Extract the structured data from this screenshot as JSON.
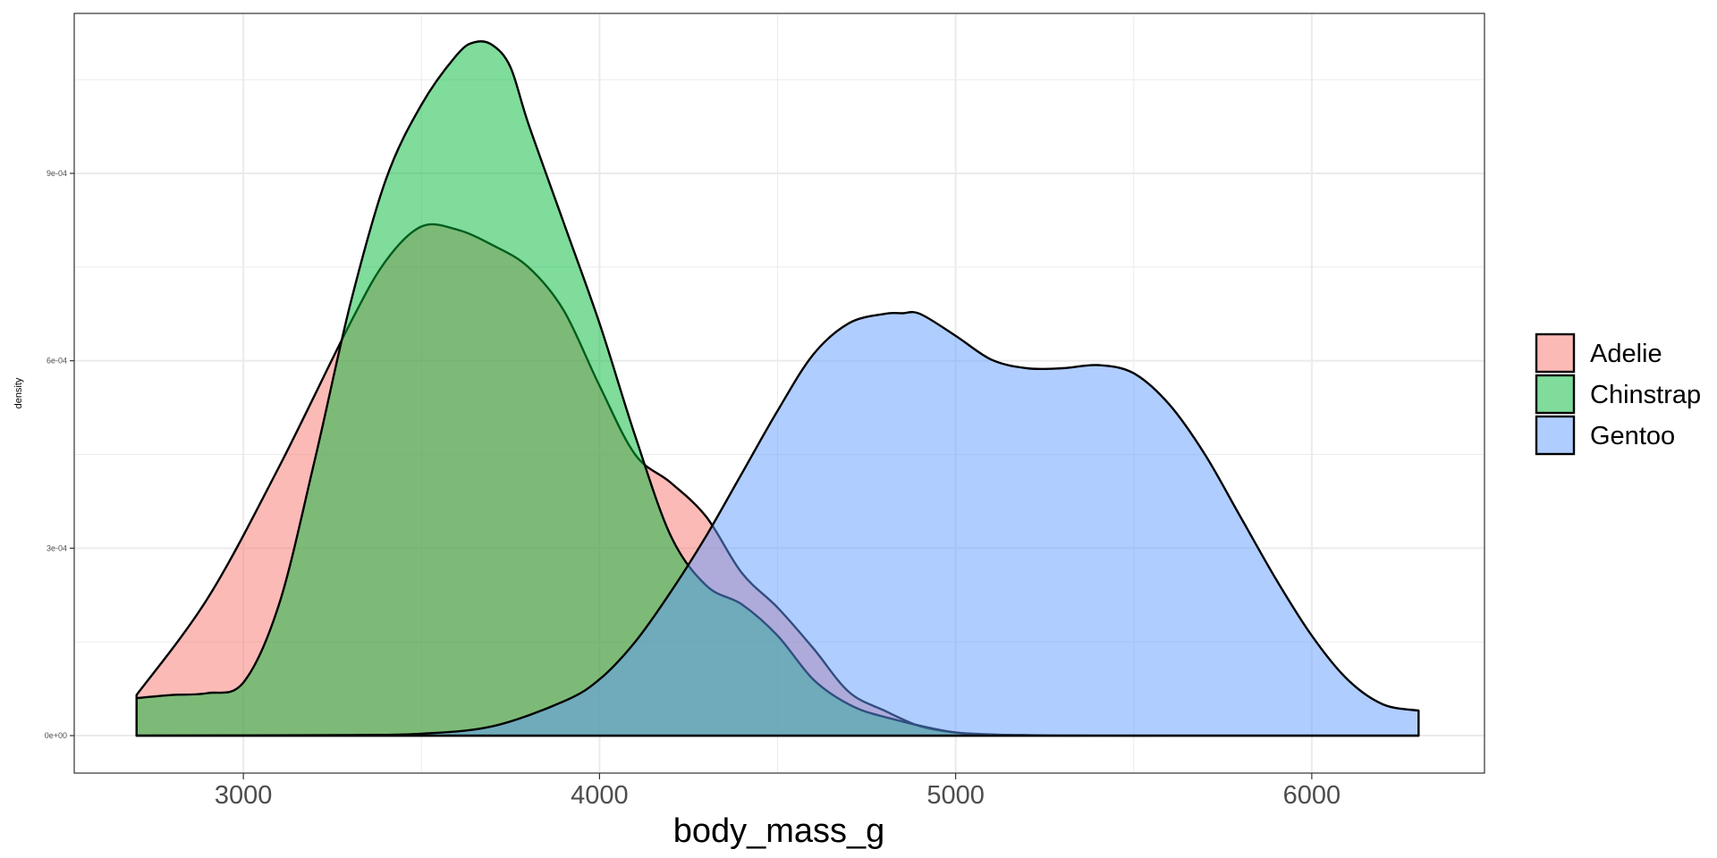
{
  "chart_data": {
    "type": "area",
    "subtype": "density",
    "xlabel": "body_mass_g",
    "ylabel": "density",
    "xlim": [
      2525,
      6485
    ],
    "ylim": [
      -6e-05,
      0.001156
    ],
    "x_ticks": [
      3000,
      4000,
      5000,
      6000
    ],
    "x_tick_labels": [
      "3000",
      "4000",
      "5000",
      "6000"
    ],
    "y_ticks": [
      0,
      0.0003,
      0.0006,
      0.0009
    ],
    "y_tick_labels": [
      "0e+00",
      "3e-04",
      "6e-04",
      "9e-04"
    ],
    "grid": true,
    "legend_position": "right",
    "series": [
      {
        "name": "Adelie",
        "color": "#F8766D",
        "x": [
          2700,
          2900,
          3100,
          3300,
          3400,
          3500,
          3600,
          3700,
          3800,
          3900,
          4000,
          4100,
          4200,
          4300,
          4400,
          4500,
          4600,
          4700,
          4800,
          4900,
          5000,
          5100,
          5200,
          5400,
          5600,
          5800,
          6000,
          6300
        ],
        "y": [
          6.5e-05,
          0.00022,
          0.00043,
          0.00066,
          0.00076,
          0.000815,
          0.00081,
          0.000785,
          0.00075,
          0.00068,
          0.00056,
          0.00045,
          0.000405,
          0.00035,
          0.00026,
          0.000205,
          0.00014,
          7e-05,
          4e-05,
          1.5e-05,
          5e-06,
          2e-06,
          0,
          0,
          0,
          0,
          0,
          0
        ]
      },
      {
        "name": "Chinstrap",
        "color": "#00BA38",
        "x": [
          2700,
          2800,
          2900,
          3000,
          3100,
          3200,
          3300,
          3400,
          3500,
          3600,
          3650,
          3700,
          3750,
          3800,
          3900,
          4000,
          4100,
          4200,
          4300,
          4400,
          4500,
          4600,
          4700,
          4800,
          5000,
          5200,
          5400,
          5600,
          5800,
          6000,
          6300
        ],
        "y": [
          6e-05,
          6.5e-05,
          6.8e-05,
          8.5e-05,
          0.00021,
          0.00044,
          0.00069,
          0.00089,
          0.00101,
          0.00109,
          0.00111,
          0.001105,
          0.00107,
          0.00098,
          0.00082,
          0.00066,
          0.00048,
          0.00032,
          0.00024,
          0.00021,
          0.00016,
          9e-05,
          5e-05,
          3e-05,
          5e-06,
          1e-06,
          0,
          0,
          0,
          0,
          0
        ]
      },
      {
        "name": "Gentoo",
        "color": "#619CFF",
        "x": [
          2700,
          3300,
          3500,
          3700,
          3900,
          4000,
          4100,
          4200,
          4300,
          4400,
          4500,
          4600,
          4700,
          4800,
          4850,
          4900,
          5000,
          5100,
          5200,
          5300,
          5400,
          5500,
          5600,
          5700,
          5800,
          5900,
          6000,
          6100,
          6200,
          6300
        ],
        "y": [
          0,
          1e-06,
          3e-06,
          1.5e-05,
          5.5e-05,
          9e-05,
          0.00015,
          0.00023,
          0.00032,
          0.00042,
          0.00052,
          0.00061,
          0.00066,
          0.000675,
          0.000676,
          0.000675,
          0.00064,
          0.000602,
          0.000588,
          0.000588,
          0.000593,
          0.00058,
          0.00053,
          0.00045,
          0.00035,
          0.00025,
          0.00016,
          9e-05,
          5e-05,
          4e-05
        ]
      }
    ]
  }
}
